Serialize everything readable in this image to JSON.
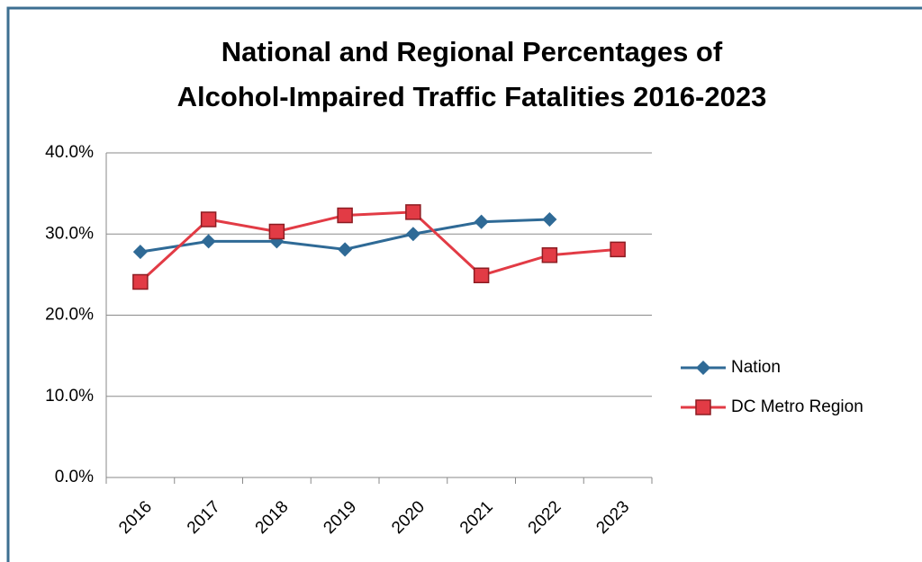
{
  "chart_data": {
    "type": "line",
    "title": [
      "National and Regional Percentages of",
      "Alcohol-Impaired Traffic Fatalities 2016-2023"
    ],
    "categories": [
      "2016",
      "2017",
      "2018",
      "2019",
      "2020",
      "2021",
      "2022",
      "2023"
    ],
    "series": [
      {
        "name": "Nation",
        "color": "#2f6a96",
        "marker": "diamond",
        "values": [
          27.8,
          29.1,
          29.1,
          28.1,
          30.0,
          31.5,
          31.8,
          null
        ]
      },
      {
        "name": "DC Metro Region",
        "color": "#e23b45",
        "marker": "square",
        "values": [
          24.1,
          31.8,
          30.3,
          32.3,
          32.7,
          24.9,
          27.4,
          28.1
        ]
      }
    ],
    "ylim": [
      0,
      40
    ],
    "yticks": [
      {
        "value": 0,
        "label": "0.0%"
      },
      {
        "value": 10,
        "label": "10.0%"
      },
      {
        "value": 20,
        "label": "20.0%"
      },
      {
        "value": 30,
        "label": "30.0%"
      },
      {
        "value": 40,
        "label": "40.0%"
      }
    ],
    "grid": true,
    "legend": "right"
  }
}
